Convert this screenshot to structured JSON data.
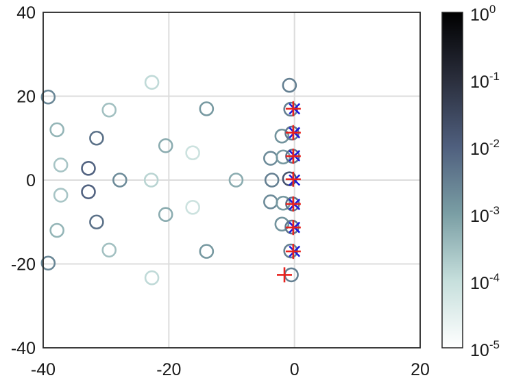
{
  "chart_data": {
    "type": "scatter",
    "title": "",
    "xlabel": "",
    "ylabel": "",
    "xlim": [
      -40,
      20
    ],
    "ylim": [
      -40,
      40
    ],
    "grid": true,
    "x_ticks": [
      "-40",
      "-20",
      "0",
      "20"
    ],
    "y_ticks": [
      "40",
      "20",
      "0",
      "-20",
      "-40"
    ],
    "colorbar": {
      "scale": "log",
      "range": [
        1e-05,
        1
      ],
      "ticks": [
        {
          "base": "10",
          "exp": "0"
        },
        {
          "base": "10",
          "exp": "-1"
        },
        {
          "base": "10",
          "exp": "-2"
        },
        {
          "base": "10",
          "exp": "-3"
        },
        {
          "base": "10",
          "exp": "-4"
        },
        {
          "base": "10",
          "exp": "-5"
        }
      ],
      "colormap": [
        "#ffffff",
        "#c6dfdc",
        "#7a9ea4",
        "#4f5f7e",
        "#2a2e3c",
        "#000000"
      ]
    },
    "series": [
      {
        "marker": "circle",
        "points": [
          {
            "x": -39.2,
            "y": 19.8,
            "c": 0.0022
          },
          {
            "x": -39.2,
            "y": -19.8,
            "c": 0.0022
          },
          {
            "x": -37.8,
            "y": 12.0,
            "c": 0.00045
          },
          {
            "x": -37.8,
            "y": -12.0,
            "c": 0.00045
          },
          {
            "x": -37.2,
            "y": 3.6,
            "c": 0.00025
          },
          {
            "x": -37.2,
            "y": -3.6,
            "c": 0.00025
          },
          {
            "x": -32.8,
            "y": 2.8,
            "c": 0.009
          },
          {
            "x": -32.8,
            "y": -2.8,
            "c": 0.009
          },
          {
            "x": -31.5,
            "y": 10.0,
            "c": 0.005
          },
          {
            "x": -31.5,
            "y": -10.0,
            "c": 0.005
          },
          {
            "x": -29.5,
            "y": 16.7,
            "c": 0.0003
          },
          {
            "x": -29.5,
            "y": -16.7,
            "c": 0.0003
          },
          {
            "x": -27.8,
            "y": 0.0,
            "c": 0.002
          },
          {
            "x": -22.7,
            "y": 23.3,
            "c": 0.00012
          },
          {
            "x": -22.7,
            "y": -23.3,
            "c": 0.00012
          },
          {
            "x": -22.8,
            "y": 0.0,
            "c": 0.00015
          },
          {
            "x": -20.5,
            "y": 8.2,
            "c": 0.0006
          },
          {
            "x": -20.5,
            "y": -8.2,
            "c": 0.0006
          },
          {
            "x": -16.2,
            "y": 6.5,
            "c": 8e-05
          },
          {
            "x": -16.2,
            "y": -6.5,
            "c": 8e-05
          },
          {
            "x": -14.0,
            "y": 17.0,
            "c": 0.0012
          },
          {
            "x": -14.0,
            "y": -17.0,
            "c": 0.0012
          },
          {
            "x": -9.3,
            "y": 0.0,
            "c": 0.0006
          },
          {
            "x": -3.8,
            "y": 5.2,
            "c": 0.002
          },
          {
            "x": -3.8,
            "y": -5.2,
            "c": 0.002
          },
          {
            "x": -3.6,
            "y": 0.0,
            "c": 0.003
          },
          {
            "x": -2.0,
            "y": 10.5,
            "c": 0.0015
          },
          {
            "x": -2.0,
            "y": -10.5,
            "c": 0.0015
          },
          {
            "x": -1.8,
            "y": 5.5,
            "c": 0.0012
          },
          {
            "x": -1.8,
            "y": -5.5,
            "c": 0.0012
          },
          {
            "x": -0.8,
            "y": 22.6,
            "c": 0.003
          },
          {
            "x": -0.8,
            "y": 0.3,
            "c": 0.015
          },
          {
            "x": -0.6,
            "y": 16.9,
            "c": 0.003
          },
          {
            "x": -0.6,
            "y": -16.9,
            "c": 0.003
          },
          {
            "x": -0.4,
            "y": 11.2,
            "c": 0.004
          },
          {
            "x": -0.4,
            "y": -11.2,
            "c": 0.004
          },
          {
            "x": -0.3,
            "y": 5.7,
            "c": 0.005
          },
          {
            "x": -0.3,
            "y": -5.7,
            "c": 0.005
          },
          {
            "x": -0.5,
            "y": -22.6,
            "c": 0.003
          }
        ]
      },
      {
        "marker": "x",
        "color": "#1a1adc",
        "points": [
          {
            "x": 0.0,
            "y": 17.0
          },
          {
            "x": 0.0,
            "y": 11.3
          },
          {
            "x": 0.0,
            "y": 5.8
          },
          {
            "x": 0.0,
            "y": 0.0
          },
          {
            "x": 0.0,
            "y": -5.8
          },
          {
            "x": 0.0,
            "y": -11.3
          },
          {
            "x": 0.0,
            "y": -17.0
          }
        ]
      },
      {
        "marker": "plus",
        "color": "#e8211d",
        "points": [
          {
            "x": -0.2,
            "y": 17.0
          },
          {
            "x": -0.2,
            "y": 11.3
          },
          {
            "x": -0.2,
            "y": 5.7
          },
          {
            "x": -0.2,
            "y": 0.2
          },
          {
            "x": -0.2,
            "y": -5.7
          },
          {
            "x": -0.2,
            "y": -11.3
          },
          {
            "x": -0.2,
            "y": -17.0
          },
          {
            "x": -1.6,
            "y": -22.6
          }
        ]
      }
    ]
  }
}
